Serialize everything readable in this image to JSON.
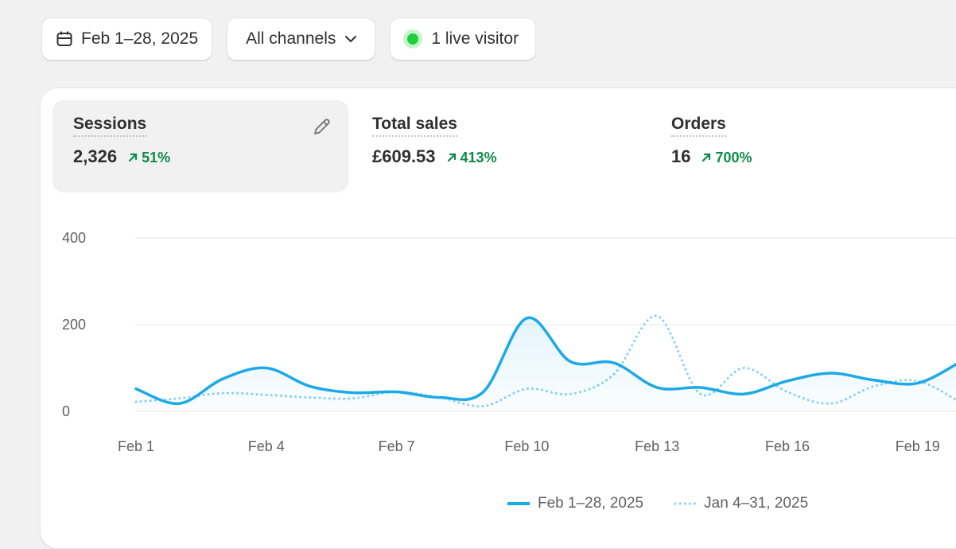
{
  "filters": {
    "date_range": {
      "label": "Feb 1–28, 2025",
      "icon": "calendar-icon"
    },
    "channels": {
      "label": "All channels",
      "icon": "chevron-down-icon"
    },
    "live": {
      "label": "1 live visitor",
      "dot_color": "#1ed03a"
    }
  },
  "metrics": [
    {
      "label": "Sessions",
      "value": "2,326",
      "change": "51%",
      "selected": true
    },
    {
      "label": "Total sales",
      "value": "£609.53",
      "change": "413%",
      "selected": false
    },
    {
      "label": "Orders",
      "value": "16",
      "change": "700%",
      "selected": false
    }
  ],
  "colors": {
    "primary": "#1ba9e8",
    "comparison": "#8ccff0",
    "positive": "#0f8a4b"
  },
  "chart_data": {
    "type": "line",
    "y_ticks": [
      "400",
      "200",
      "0"
    ],
    "ylim": [
      0,
      400
    ],
    "x_tick_labels": [
      "Feb 1",
      "Feb 4",
      "Feb 7",
      "Feb 10",
      "Feb 13",
      "Feb 16",
      "Feb 19"
    ],
    "x": [
      1,
      2,
      3,
      4,
      5,
      6,
      7,
      8,
      9,
      10,
      11,
      12,
      13,
      14,
      15,
      16,
      17,
      18,
      19,
      20
    ],
    "series": [
      {
        "name": "Feb 1–28, 2025",
        "style": "solid",
        "values": [
          52,
          18,
          75,
          100,
          58,
          43,
          45,
          32,
          45,
          215,
          115,
          112,
          55,
          55,
          40,
          70,
          88,
          72,
          65,
          115
        ]
      },
      {
        "name": "Jan 4–31, 2025",
        "style": "dotted",
        "values": [
          22,
          30,
          42,
          38,
          32,
          30,
          45,
          32,
          12,
          52,
          40,
          85,
          220,
          40,
          100,
          45,
          18,
          58,
          70,
          20
        ]
      }
    ],
    "grid": true,
    "legend": "bottom"
  }
}
